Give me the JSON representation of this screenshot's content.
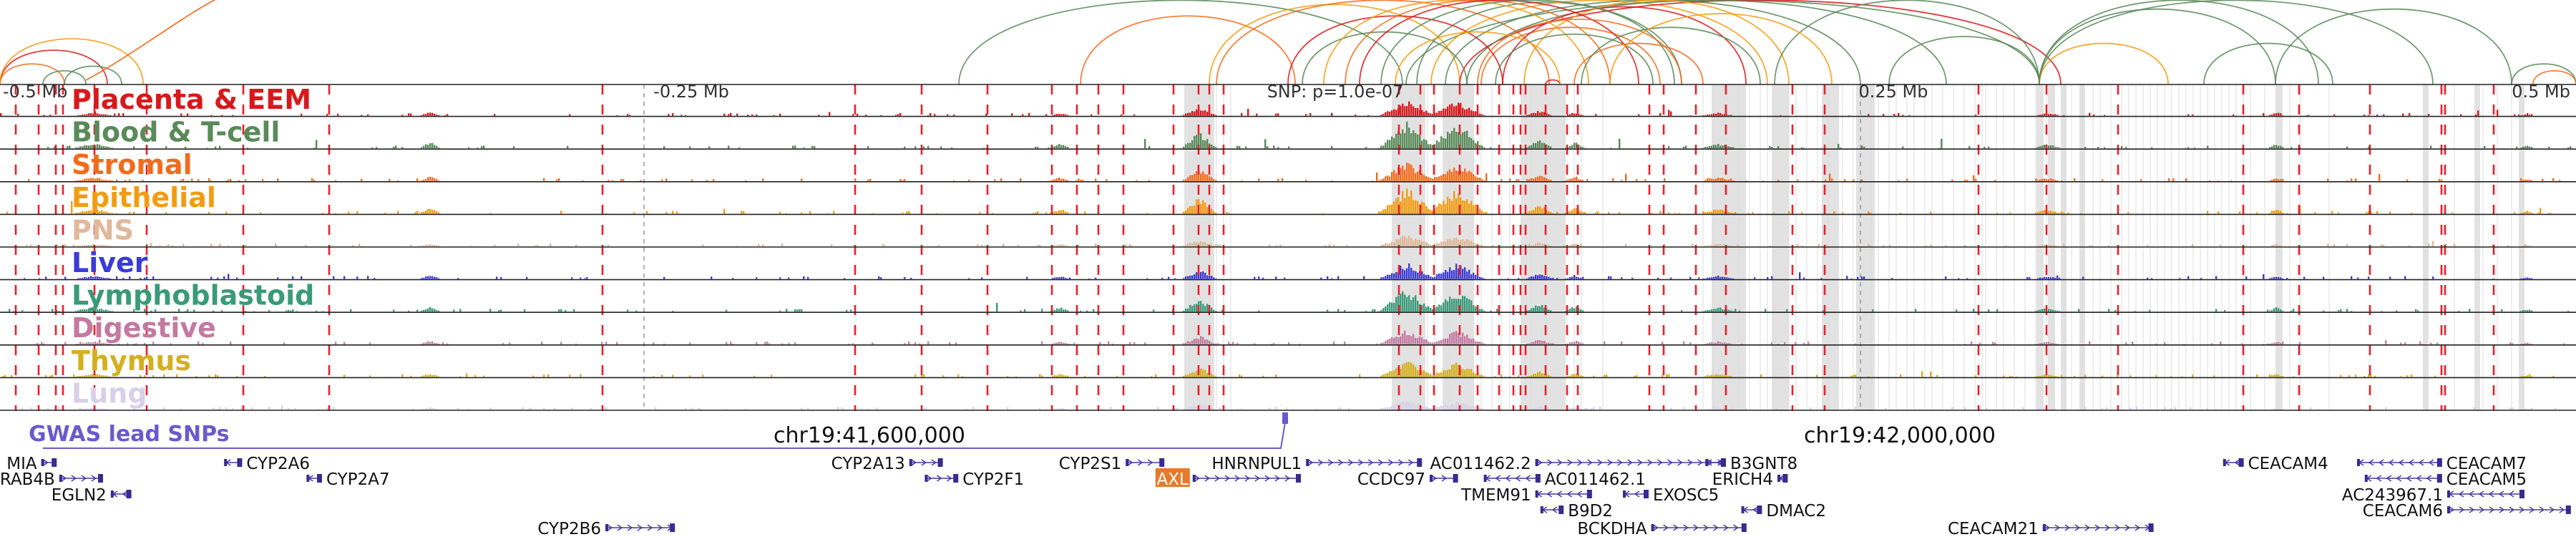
{
  "ruler": {
    "ticks": [
      {
        "label": "-0.5 Mb",
        "frac": 0.0
      },
      {
        "label": "-0.25 Mb",
        "frac": 0.25
      },
      {
        "label": "SNP: p=1.0e-07",
        "frac": 0.5
      },
      {
        "label": "0.25 Mb",
        "frac": 0.75
      },
      {
        "label": "0.5 Mb",
        "frac": 1.0
      }
    ]
  },
  "tracks": [
    {
      "label": "Placenta & EEM",
      "color": "#d7191c"
    },
    {
      "label": "Blood & T-cell",
      "color": "#5a8a5a"
    },
    {
      "label": "Stromal",
      "color": "#f26b1d"
    },
    {
      "label": "Epithelial",
      "color": "#f39c12"
    },
    {
      "label": "PNS",
      "color": "#e0b89a"
    },
    {
      "label": "Liver",
      "color": "#3b3bd6"
    },
    {
      "label": "Lymphoblastoid",
      "color": "#3a9a7a"
    },
    {
      "label": "Digestive",
      "color": "#c47aa0"
    },
    {
      "label": "Thymus",
      "color": "#d4b020"
    },
    {
      "label": "Lung",
      "color": "#d8d0e8"
    }
  ],
  "snp_track": {
    "label": "GWAS lead SNPs",
    "color": "#6a5acd"
  },
  "coordinates": [
    {
      "label": "chr19:41,600,000",
      "frac": 0.338
    },
    {
      "label": "chr19:42,000,000",
      "frac": 0.738
    }
  ],
  "genes": [
    {
      "name": "MIA",
      "row": 0,
      "x0": 0.016,
      "x1": 0.022,
      "strand": "+",
      "lab": "left"
    },
    {
      "name": "CYP2A6",
      "row": 0,
      "x0": 0.087,
      "x1": 0.094,
      "strand": "-",
      "lab": "right"
    },
    {
      "name": "CYP2A13",
      "row": 0,
      "x0": 0.353,
      "x1": 0.366,
      "strand": "+",
      "lab": "left"
    },
    {
      "name": "CYP2S1",
      "row": 0,
      "x0": 0.437,
      "x1": 0.452,
      "strand": "+",
      "lab": "left"
    },
    {
      "name": "HNRNPUL1",
      "row": 0,
      "x0": 0.507,
      "x1": 0.552,
      "strand": "+",
      "lab": "left"
    },
    {
      "name": "AC011462.2",
      "row": 0,
      "x0": 0.596,
      "x1": 0.67,
      "strand": "+",
      "lab": "left"
    },
    {
      "name": "B3GNT8",
      "row": 0,
      "x0": 0.662,
      "x1": 0.67,
      "strand": "-",
      "lab": "right"
    },
    {
      "name": "CEACAM4",
      "row": 0,
      "x0": 0.863,
      "x1": 0.871,
      "strand": "-",
      "lab": "right"
    },
    {
      "name": "CEACAM7",
      "row": 0,
      "x0": 0.915,
      "x1": 0.948,
      "strand": "-",
      "lab": "right"
    },
    {
      "name": "RAB4B",
      "row": 1,
      "x0": 0.023,
      "x1": 0.04,
      "strand": "+",
      "lab": "left"
    },
    {
      "name": "CYP2A7",
      "row": 1,
      "x0": 0.119,
      "x1": 0.125,
      "strand": "-",
      "lab": "right"
    },
    {
      "name": "CYP2F1",
      "row": 1,
      "x0": 0.359,
      "x1": 0.372,
      "strand": "+",
      "lab": "right"
    },
    {
      "name": "AXL",
      "row": 1,
      "x0": 0.463,
      "x1": 0.505,
      "strand": "+",
      "lab": "left",
      "highlight": true
    },
    {
      "name": "CCDC97",
      "row": 1,
      "x0": 0.555,
      "x1": 0.566,
      "strand": "+",
      "lab": "left"
    },
    {
      "name": "AC011462.1",
      "row": 1,
      "x0": 0.576,
      "x1": 0.598,
      "strand": "-",
      "lab": "right"
    },
    {
      "name": "ERICH4",
      "row": 1,
      "x0": 0.69,
      "x1": 0.694,
      "strand": "-",
      "lab": "left"
    },
    {
      "name": "CEACAM5",
      "row": 1,
      "x0": 0.918,
      "x1": 0.948,
      "strand": "-",
      "lab": "right"
    },
    {
      "name": "EGLN2",
      "row": 2,
      "x0": 0.043,
      "x1": 0.051,
      "strand": "-",
      "lab": "left"
    },
    {
      "name": "TMEM91",
      "row": 2,
      "x0": 0.596,
      "x1": 0.618,
      "strand": "-",
      "lab": "left"
    },
    {
      "name": "EXOSC5",
      "row": 2,
      "x0": 0.63,
      "x1": 0.64,
      "strand": "-",
      "lab": "right"
    },
    {
      "name": "AC243967.1",
      "row": 2,
      "x0": 0.95,
      "x1": 0.98,
      "strand": "-",
      "lab": "left"
    },
    {
      "name": "B9D2",
      "row": 3,
      "x0": 0.598,
      "x1": 0.607,
      "strand": "-",
      "lab": "right"
    },
    {
      "name": "DMAC2",
      "row": 3,
      "x0": 0.676,
      "x1": 0.684,
      "strand": "-",
      "lab": "right"
    },
    {
      "name": "CEACAM6",
      "row": 3,
      "x0": 0.95,
      "x1": 0.998,
      "strand": "+",
      "lab": "left"
    },
    {
      "name": "CYP2B6",
      "row": 4,
      "x0": 0.235,
      "x1": 0.262,
      "strand": "+",
      "lab": "left"
    },
    {
      "name": "BCKDHA",
      "row": 4,
      "x0": 0.641,
      "x1": 0.678,
      "strand": "+",
      "lab": "left"
    },
    {
      "name": "CEACAM21",
      "row": 4,
      "x0": 0.793,
      "x1": 0.836,
      "strand": "+",
      "lab": "left"
    }
  ]
}
